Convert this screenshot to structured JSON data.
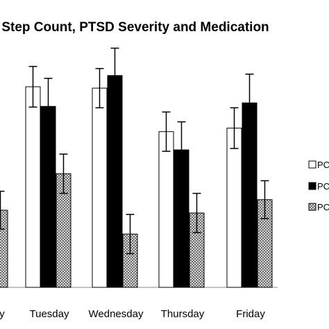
{
  "chart_data": {
    "type": "bar",
    "title": "Step Count, PTSD Severity and Medication",
    "categories": [
      "Monday",
      "Tuesday",
      "Wednesday",
      "Thursday",
      "Friday"
    ],
    "series": [
      {
        "name": "PC",
        "fill": "#ffffff",
        "values": [
          0,
          286,
          284,
          222,
          227
        ],
        "err": [
          0,
          29,
          28,
          28,
          29
        ]
      },
      {
        "name": "PC",
        "fill": "#000000",
        "values": [
          0,
          258,
          302,
          196,
          263
        ],
        "err": [
          0,
          40,
          39,
          40,
          41
        ]
      },
      {
        "name": "PC",
        "fill": "pattern",
        "values": [
          110,
          162,
          76,
          106,
          125
        ],
        "err": [
          27,
          28,
          28,
          28,
          27
        ]
      }
    ],
    "xlabel": "",
    "ylabel": "",
    "ylim": [
      0,
      380
    ],
    "grid": false,
    "legend_position": "right"
  }
}
